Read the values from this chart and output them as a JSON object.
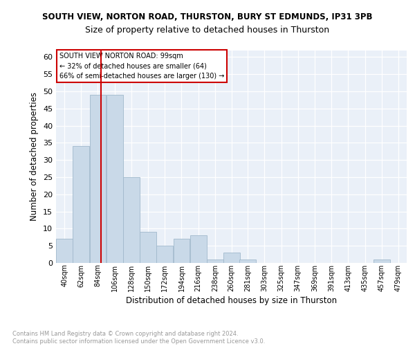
{
  "title1": "SOUTH VIEW, NORTON ROAD, THURSTON, BURY ST EDMUNDS, IP31 3PB",
  "title2": "Size of property relative to detached houses in Thurston",
  "xlabel": "Distribution of detached houses by size in Thurston",
  "ylabel": "Number of detached properties",
  "footnote": "Contains HM Land Registry data © Crown copyright and database right 2024.\nContains public sector information licensed under the Open Government Licence v3.0.",
  "bin_labels": [
    "40sqm",
    "62sqm",
    "84sqm",
    "106sqm",
    "128sqm",
    "150sqm",
    "172sqm",
    "194sqm",
    "216sqm",
    "238sqm",
    "260sqm",
    "281sqm",
    "303sqm",
    "325sqm",
    "347sqm",
    "369sqm",
    "391sqm",
    "413sqm",
    "435sqm",
    "457sqm",
    "479sqm"
  ],
  "bar_values": [
    7,
    34,
    49,
    49,
    25,
    9,
    5,
    7,
    8,
    1,
    3,
    1,
    0,
    0,
    0,
    0,
    0,
    0,
    0,
    1,
    0
  ],
  "bar_color": "#c9d9e8",
  "bar_edge_color": "#a0b8cc",
  "vline_x": 99,
  "vline_color": "#cc0000",
  "ylim": [
    0,
    62
  ],
  "yticks": [
    0,
    5,
    10,
    15,
    20,
    25,
    30,
    35,
    40,
    45,
    50,
    55,
    60
  ],
  "annotation_title": "SOUTH VIEW NORTON ROAD: 99sqm",
  "annotation_line1": "← 32% of detached houses are smaller (64)",
  "annotation_line2": "66% of semi-detached houses are larger (130) →",
  "annotation_box_color": "#ffffff",
  "annotation_box_edge": "#cc0000",
  "bin_edges": [
    40,
    62,
    84,
    106,
    128,
    150,
    172,
    194,
    216,
    238,
    260,
    281,
    303,
    325,
    347,
    369,
    391,
    413,
    435,
    457,
    479,
    501
  ],
  "bg_color": "#eaf0f8",
  "grid_color": "#ffffff",
  "title1_fontsize": 8.5,
  "title2_fontsize": 9.0,
  "footnote_fontsize": 6.0
}
